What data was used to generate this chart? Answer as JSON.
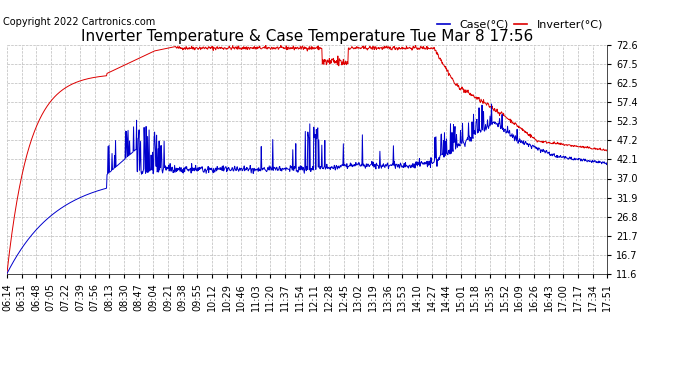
{
  "title": "Inverter Temperature & Case Temperature Tue Mar 8 17:56",
  "copyright": "Copyright 2022 Cartronics.com",
  "legend_case": "Case(°C)",
  "legend_inverter": "Inverter(°C)",
  "yticks": [
    11.6,
    16.7,
    21.7,
    26.8,
    31.9,
    37.0,
    42.1,
    47.2,
    52.3,
    57.4,
    62.5,
    67.5,
    72.6
  ],
  "ylim": [
    11.6,
    72.6
  ],
  "background_color": "#ffffff",
  "grid_color": "#bbbbbb",
  "inverter_color": "#dd0000",
  "case_color": "#0000cc",
  "title_fontsize": 11,
  "copyright_fontsize": 7,
  "legend_fontsize": 8,
  "tick_fontsize": 7,
  "tick_times_raw": [
    "06:14",
    "06:31",
    "06:48",
    "07:05",
    "07:22",
    "07:39",
    "07:56",
    "08:13",
    "08:30",
    "08:47",
    "09:04",
    "09:21",
    "09:38",
    "09:55",
    "10:12",
    "10:29",
    "10:46",
    "11:03",
    "11:20",
    "11:37",
    "11:54",
    "12:11",
    "12:28",
    "12:45",
    "13:02",
    "13:19",
    "13:36",
    "13:53",
    "14:10",
    "14:27",
    "14:44",
    "15:01",
    "15:18",
    "15:35",
    "15:52",
    "16:09",
    "16:26",
    "16:43",
    "17:00",
    "17:17",
    "17:34",
    "17:51"
  ]
}
